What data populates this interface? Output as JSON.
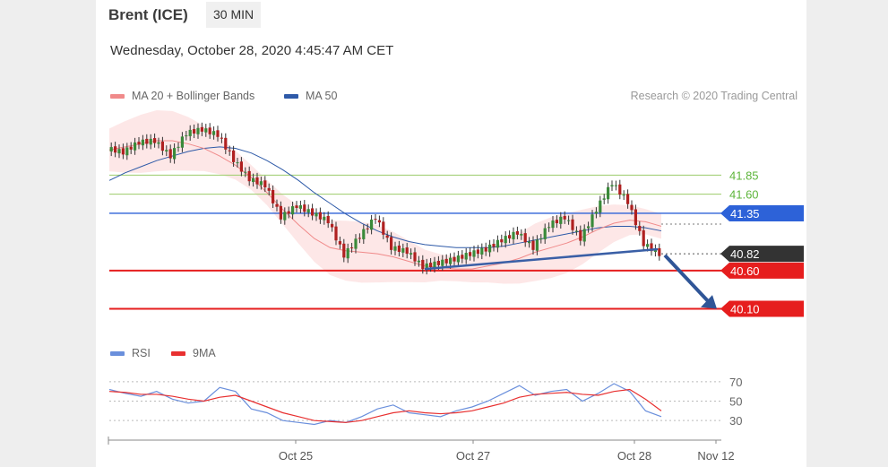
{
  "header": {
    "instrument": "Brent (ICE)",
    "timeframe": "30 MIN",
    "datetime": "Wednesday, October 28, 2020 4:45:47 AM CET",
    "copyright": "Research © 2020 Trading Central"
  },
  "legend": {
    "ma20": "MA 20 + Bollinger Bands",
    "ma50": "MA 50",
    "rsi": "RSI",
    "ma9": "9MA"
  },
  "colors": {
    "ma20": "#f08a8a",
    "ma50": "#2e5aa8",
    "rsi": "#6a8fdc",
    "ma9": "#e83030",
    "bollinger": "#fde4e4",
    "resistance_green": "#9ccc6a",
    "resistance_blue": "#2d62d8",
    "support_red": "#e61e1e",
    "current": "#333333"
  },
  "chart_data": [
    {
      "type": "line",
      "title": "",
      "x_ticks": [
        "Oct 25",
        "Oct 27",
        "Oct 28",
        "Nov 12"
      ],
      "ylim": [
        39.8,
        42.5
      ],
      "levels": [
        {
          "label": "41.85",
          "value": 41.85,
          "kind": "resistance",
          "color": "#5db53a"
        },
        {
          "label": "41.60",
          "value": 41.6,
          "kind": "resistance",
          "color": "#5db53a"
        },
        {
          "label": "41.35",
          "value": 41.35,
          "kind": "pivot",
          "color": "#2d62d8"
        },
        {
          "label": "40.82",
          "value": 40.82,
          "kind": "last",
          "color": "#333333"
        },
        {
          "label": "40.60",
          "value": 40.6,
          "kind": "support",
          "color": "#e61e1e"
        },
        {
          "label": "40.10",
          "value": 40.1,
          "kind": "support",
          "color": "#e61e1e"
        }
      ],
      "series": [
        {
          "name": "MA 20",
          "values": [
            42.18,
            42.22,
            42.26,
            42.3,
            42.3,
            42.26,
            42.2,
            42.1,
            41.98,
            41.82,
            41.62,
            41.4,
            41.2,
            41.02,
            40.9,
            40.86,
            40.84,
            40.82,
            40.78,
            40.72,
            40.66,
            40.64,
            40.62,
            40.62,
            40.66,
            40.7,
            40.76,
            40.84,
            40.9,
            40.96,
            41.04,
            41.14,
            41.22,
            41.26,
            41.24,
            41.18
          ]
        },
        {
          "name": "MA 50",
          "values": [
            41.78,
            41.88,
            41.96,
            42.04,
            42.1,
            42.16,
            42.2,
            42.22,
            42.2,
            42.14,
            42.04,
            41.92,
            41.78,
            41.62,
            41.48,
            41.34,
            41.22,
            41.12,
            41.04,
            40.98,
            40.94,
            40.92,
            40.9,
            40.9,
            40.9,
            40.92,
            40.96,
            41.0,
            41.04,
            41.08,
            41.12,
            41.16,
            41.18,
            41.18,
            41.16,
            41.12
          ]
        },
        {
          "name": "Price",
          "values": [
            42.2,
            42.15,
            42.28,
            42.3,
            42.1,
            42.4,
            42.45,
            42.38,
            42.05,
            41.8,
            41.72,
            41.3,
            41.45,
            41.35,
            41.25,
            40.8,
            41.05,
            41.3,
            40.9,
            40.85,
            40.65,
            40.7,
            40.75,
            40.82,
            40.88,
            41.0,
            41.1,
            40.9,
            41.2,
            41.3,
            41.02,
            41.4,
            41.75,
            41.5,
            40.95,
            40.82
          ]
        }
      ]
    },
    {
      "type": "line",
      "title": "",
      "y_ticks": [
        70,
        50,
        30
      ],
      "ylim": [
        20,
        80
      ],
      "series": [
        {
          "name": "RSI",
          "values": [
            62,
            58,
            55,
            60,
            52,
            48,
            50,
            64,
            60,
            42,
            38,
            30,
            28,
            26,
            30,
            28,
            34,
            42,
            46,
            38,
            36,
            34,
            40,
            44,
            50,
            58,
            66,
            56,
            60,
            62,
            50,
            58,
            68,
            60,
            40,
            34
          ]
        },
        {
          "name": "9MA",
          "values": [
            60,
            59,
            57,
            57,
            55,
            52,
            50,
            54,
            56,
            50,
            44,
            38,
            34,
            30,
            29,
            28,
            30,
            34,
            38,
            40,
            38,
            37,
            38,
            40,
            44,
            48,
            54,
            57,
            58,
            59,
            57,
            56,
            60,
            62,
            52,
            40
          ]
        }
      ]
    }
  ]
}
